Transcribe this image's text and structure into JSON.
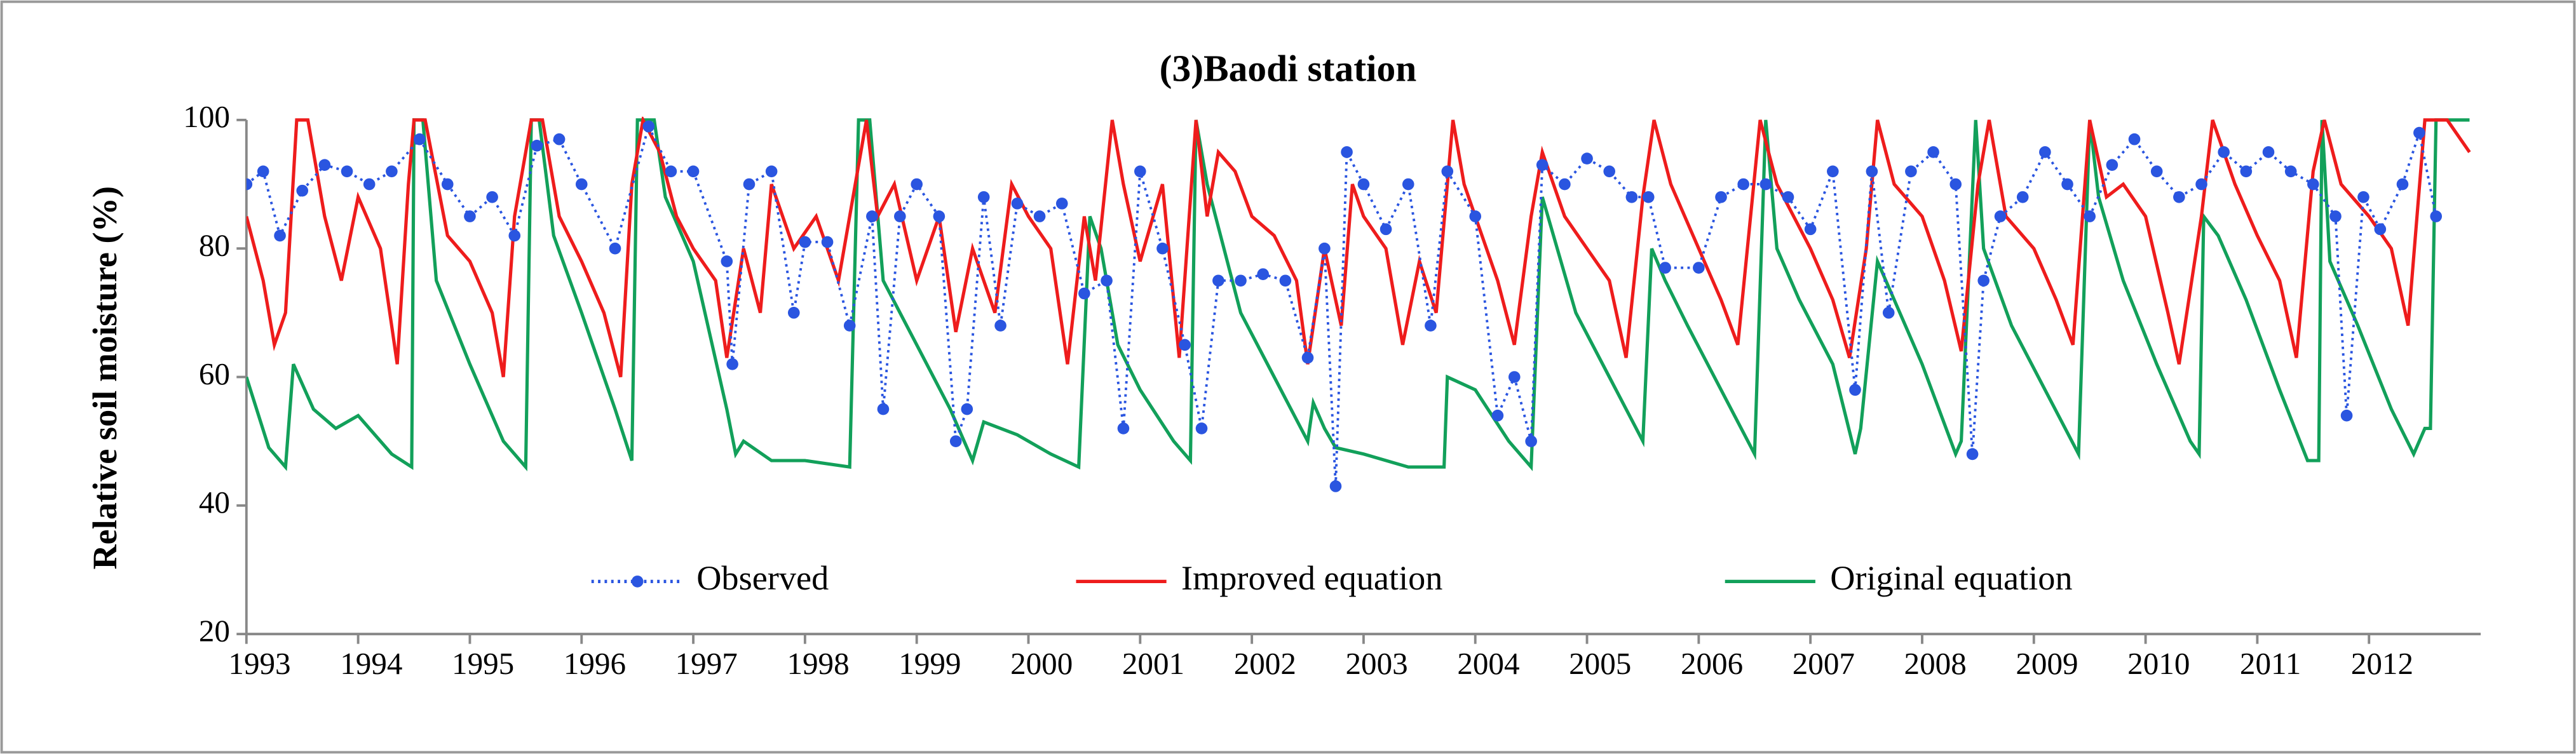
{
  "chart_data": {
    "type": "line",
    "title": "(3)Baodi station",
    "ylabel": "Relative soil moisture (%)",
    "xlim": [
      1993,
      2013
    ],
    "xticks": [
      1993,
      1994,
      1995,
      1996,
      1997,
      1998,
      1999,
      2000,
      2001,
      2002,
      2003,
      2004,
      2005,
      2006,
      2007,
      2008,
      2009,
      2010,
      2011,
      2012
    ],
    "ylim": [
      20,
      100
    ],
    "yticks": [
      20,
      40,
      60,
      80,
      100
    ],
    "series": [
      {
        "name": "Observed",
        "color": "#2a55e0",
        "style": "dotted-markers",
        "x": [
          1993.0,
          1993.15,
          1993.3,
          1993.5,
          1993.7,
          1993.9,
          1994.1,
          1994.3,
          1994.55,
          1994.8,
          1995.0,
          1995.2,
          1995.4,
          1995.6,
          1995.8,
          1996.0,
          1996.3,
          1996.6,
          1996.8,
          1997.0,
          1997.3,
          1997.35,
          1997.5,
          1997.7,
          1997.9,
          1998.0,
          1998.2,
          1998.4,
          1998.6,
          1998.7,
          1998.85,
          1999.0,
          1999.2,
          1999.35,
          1999.45,
          1999.6,
          1999.75,
          1999.9,
          2000.1,
          2000.3,
          2000.5,
          2000.7,
          2000.85,
          2001.0,
          2001.2,
          2001.4,
          2001.55,
          2001.7,
          2001.9,
          2002.1,
          2002.3,
          2002.5,
          2002.65,
          2002.75,
          2002.85,
          2003.0,
          2003.2,
          2003.4,
          2003.6,
          2003.75,
          2004.0,
          2004.2,
          2004.35,
          2004.5,
          2004.6,
          2004.8,
          2005.0,
          2005.2,
          2005.4,
          2005.55,
          2005.7,
          2006.0,
          2006.2,
          2006.4,
          2006.6,
          2006.8,
          2007.0,
          2007.2,
          2007.4,
          2007.55,
          2007.7,
          2007.9,
          2008.1,
          2008.3,
          2008.45,
          2008.55,
          2008.7,
          2008.9,
          2009.1,
          2009.3,
          2009.5,
          2009.7,
          2009.9,
          2010.1,
          2010.3,
          2010.5,
          2010.7,
          2010.9,
          2011.1,
          2011.3,
          2011.5,
          2011.7,
          2011.8,
          2011.95,
          2012.1,
          2012.3,
          2012.45,
          2012.6
        ],
        "values": [
          90,
          92,
          82,
          89,
          93,
          92,
          90,
          92,
          97,
          90,
          85,
          88,
          82,
          96,
          97,
          90,
          80,
          99,
          92,
          92,
          78,
          62,
          90,
          92,
          70,
          81,
          81,
          68,
          85,
          55,
          85,
          90,
          85,
          50,
          55,
          88,
          68,
          87,
          85,
          87,
          73,
          75,
          52,
          92,
          80,
          65,
          52,
          75,
          75,
          76,
          75,
          63,
          80,
          43,
          95,
          90,
          83,
          90,
          68,
          92,
          85,
          54,
          60,
          50,
          93,
          90,
          94,
          92,
          88,
          88,
          77,
          77,
          88,
          90,
          90,
          88,
          83,
          92,
          58,
          92,
          70,
          92,
          95,
          90,
          48,
          75,
          85,
          88,
          95,
          90,
          85,
          93,
          97,
          92,
          88,
          90,
          95,
          92,
          95,
          92,
          90,
          85,
          54,
          88,
          83,
          90,
          98,
          85
        ]
      },
      {
        "name": "Improved equation",
        "color": "#ee1c1c",
        "style": "solid",
        "x": [
          1993.0,
          1993.15,
          1993.25,
          1993.35,
          1993.45,
          1993.55,
          1993.7,
          1993.85,
          1994.0,
          1994.2,
          1994.35,
          1994.45,
          1994.5,
          1994.6,
          1994.8,
          1995.0,
          1995.2,
          1995.3,
          1995.4,
          1995.55,
          1995.65,
          1995.8,
          1996.0,
          1996.2,
          1996.35,
          1996.45,
          1996.55,
          1996.7,
          1996.85,
          1997.0,
          1997.2,
          1997.3,
          1997.45,
          1997.6,
          1997.7,
          1997.9,
          1998.1,
          1998.3,
          1998.45,
          1998.55,
          1998.65,
          1998.8,
          1999.0,
          1999.2,
          1999.35,
          1999.5,
          1999.7,
          1999.85,
          2000.0,
          2000.2,
          2000.35,
          2000.5,
          2000.6,
          2000.75,
          2000.85,
          2001.0,
          2001.2,
          2001.35,
          2001.5,
          2001.6,
          2001.7,
          2001.85,
          2002.0,
          2002.2,
          2002.4,
          2002.5,
          2002.65,
          2002.8,
          2002.9,
          2003.0,
          2003.2,
          2003.35,
          2003.5,
          2003.65,
          2003.8,
          2003.9,
          2004.0,
          2004.2,
          2004.35,
          2004.5,
          2004.6,
          2004.8,
          2005.0,
          2005.2,
          2005.35,
          2005.5,
          2005.6,
          2005.75,
          2006.0,
          2006.2,
          2006.35,
          2006.55,
          2006.7,
          2006.85,
          2007.0,
          2007.2,
          2007.35,
          2007.5,
          2007.6,
          2007.75,
          2008.0,
          2008.2,
          2008.35,
          2008.5,
          2008.6,
          2008.75,
          2009.0,
          2009.2,
          2009.35,
          2009.5,
          2009.65,
          2009.8,
          2010.0,
          2010.2,
          2010.3,
          2010.5,
          2010.6,
          2010.8,
          2011.0,
          2011.2,
          2011.35,
          2011.5,
          2011.6,
          2011.75,
          2012.0,
          2012.2,
          2012.35,
          2012.5,
          2012.7,
          2012.9
        ],
        "values": [
          85,
          75,
          65,
          70,
          100,
          100,
          85,
          75,
          88,
          80,
          62,
          90,
          100,
          100,
          82,
          78,
          70,
          60,
          85,
          100,
          100,
          85,
          78,
          70,
          60,
          90,
          100,
          95,
          85,
          80,
          75,
          63,
          80,
          70,
          90,
          80,
          85,
          75,
          90,
          100,
          85,
          90,
          75,
          85,
          67,
          80,
          70,
          90,
          85,
          80,
          62,
          85,
          75,
          100,
          90,
          78,
          90,
          63,
          100,
          85,
          95,
          92,
          85,
          82,
          75,
          62,
          80,
          68,
          90,
          85,
          80,
          65,
          78,
          70,
          100,
          90,
          85,
          75,
          65,
          85,
          95,
          85,
          80,
          75,
          63,
          88,
          100,
          90,
          80,
          72,
          65,
          100,
          90,
          85,
          80,
          72,
          63,
          80,
          100,
          90,
          85,
          75,
          64,
          90,
          100,
          85,
          80,
          72,
          65,
          100,
          88,
          90,
          85,
          70,
          62,
          85,
          100,
          90,
          82,
          75,
          63,
          92,
          100,
          90,
          85,
          80,
          68,
          100,
          100,
          95
        ]
      },
      {
        "name": "Original equation",
        "color": "#12a05a",
        "style": "solid",
        "x": [
          1993.0,
          1993.2,
          1993.35,
          1993.42,
          1993.6,
          1993.8,
          1994.0,
          1994.3,
          1994.48,
          1994.5,
          1994.58,
          1994.7,
          1995.0,
          1995.3,
          1995.5,
          1995.55,
          1995.62,
          1995.75,
          1996.0,
          1996.3,
          1996.45,
          1996.5,
          1996.65,
          1996.75,
          1997.0,
          1997.3,
          1997.38,
          1997.45,
          1997.7,
          1998.0,
          1998.4,
          1998.48,
          1998.58,
          1998.7,
          1999.0,
          1999.3,
          1999.5,
          1999.6,
          1999.9,
          2000.2,
          2000.45,
          2000.55,
          2000.65,
          2000.8,
          2001.0,
          2001.3,
          2001.45,
          2001.5,
          2001.6,
          2001.9,
          2002.2,
          2002.5,
          2002.55,
          2002.65,
          2002.75,
          2003.0,
          2003.4,
          2003.72,
          2003.75,
          2004.0,
          2004.3,
          2004.5,
          2004.6,
          2004.7,
          2004.9,
          2005.2,
          2005.5,
          2005.58,
          2005.7,
          2005.9,
          2006.2,
          2006.5,
          2006.6,
          2006.7,
          2006.9,
          2007.2,
          2007.4,
          2007.45,
          2007.6,
          2007.75,
          2008.0,
          2008.3,
          2008.35,
          2008.48,
          2008.55,
          2008.8,
          2009.1,
          2009.4,
          2009.5,
          2009.58,
          2009.8,
          2010.1,
          2010.4,
          2010.48,
          2010.52,
          2010.65,
          2010.9,
          2011.2,
          2011.45,
          2011.55,
          2011.58,
          2011.65,
          2011.9,
          2012.2,
          2012.4,
          2012.5,
          2012.55,
          2012.6,
          2012.8,
          2012.9
        ],
        "values": [
          60,
          49,
          46,
          62,
          55,
          52,
          54,
          48,
          46,
          100,
          100,
          75,
          62,
          50,
          46,
          100,
          100,
          82,
          70,
          55,
          47,
          100,
          100,
          88,
          78,
          55,
          48,
          50,
          47,
          47,
          46,
          100,
          100,
          75,
          65,
          55,
          47,
          53,
          51,
          48,
          46,
          85,
          80,
          65,
          58,
          50,
          47,
          100,
          90,
          70,
          60,
          50,
          56,
          52,
          49,
          48,
          46,
          46,
          60,
          58,
          50,
          46,
          88,
          82,
          70,
          60,
          50,
          80,
          75,
          68,
          58,
          48,
          100,
          80,
          72,
          62,
          48,
          52,
          78,
          72,
          62,
          48,
          50,
          100,
          80,
          68,
          58,
          48,
          100,
          88,
          75,
          62,
          50,
          48,
          85,
          82,
          72,
          58,
          47,
          47,
          100,
          78,
          68,
          55,
          48,
          52,
          52,
          100,
          100,
          100
        ]
      }
    ]
  }
}
